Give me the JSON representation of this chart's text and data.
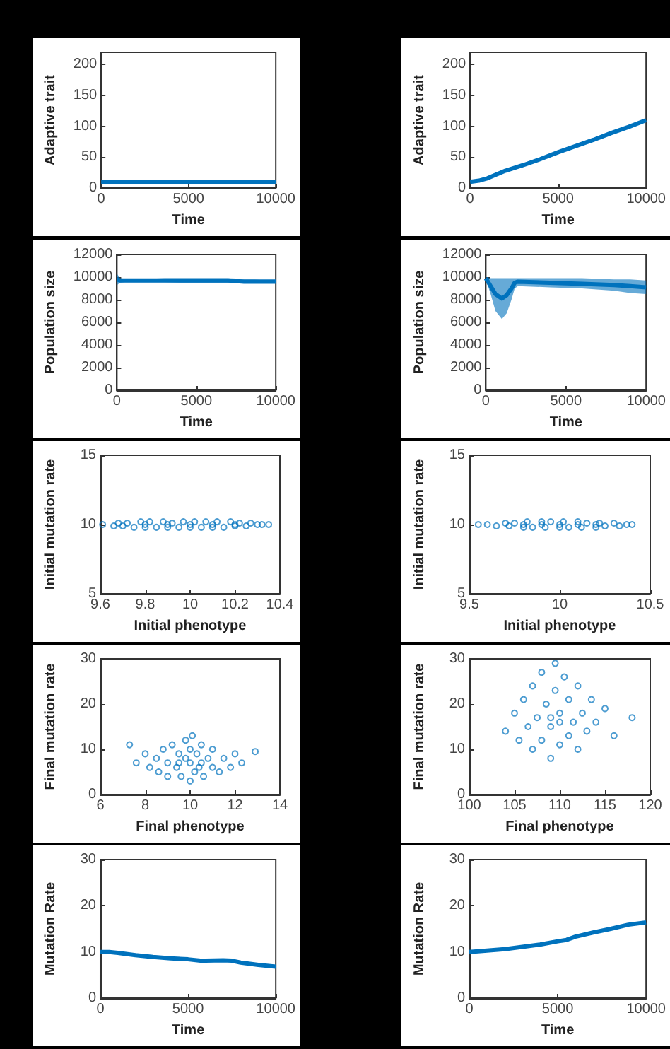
{
  "chart_data": [
    {
      "type": "line",
      "xlabel": "Time",
      "ylabel": "Adaptive trait",
      "xlim": [
        0,
        10000
      ],
      "xticks": [
        0,
        5000,
        10000
      ],
      "ylim": [
        0,
        220
      ],
      "yticks": [
        0,
        50,
        100,
        150,
        200
      ],
      "marker": "none",
      "series": [
        {
          "color": "#0072bd",
          "x": [
            0,
            10000
          ],
          "values": [
            10,
            10
          ]
        }
      ]
    },
    {
      "type": "line",
      "xlabel": "Time",
      "ylabel": "Adaptive trait",
      "xlim": [
        0,
        10000
      ],
      "xticks": [
        0,
        5000,
        10000
      ],
      "ylim": [
        0,
        220
      ],
      "yticks": [
        0,
        50,
        100,
        150,
        200
      ],
      "marker": "none",
      "series": [
        {
          "color": "#0072bd",
          "x": [
            0,
            500,
            1000,
            1500,
            2000,
            3000,
            4000,
            5000,
            6000,
            7000,
            8000,
            9000,
            10000
          ],
          "values": [
            10,
            12,
            16,
            22,
            28,
            37,
            47,
            58,
            68,
            78,
            89,
            99,
            110
          ]
        }
      ]
    },
    {
      "type": "line",
      "xlabel": "Time",
      "ylabel": "Population size",
      "xlim": [
        0,
        10000
      ],
      "xticks": [
        0,
        5000,
        10000
      ],
      "ylim": [
        0,
        12000
      ],
      "yticks": [
        0,
        2000,
        4000,
        6000,
        8000,
        10000,
        12000
      ],
      "marker": "none",
      "series": [
        {
          "color": "#0072bd",
          "x": [
            0,
            200,
            500,
            1000,
            2000,
            3000,
            4000,
            5000,
            6000,
            7000,
            8000,
            9000,
            10000
          ],
          "values": [
            9800,
            9700,
            9700,
            9700,
            9700,
            9700,
            9700,
            9700,
            9700,
            9700,
            9600,
            9600,
            9600
          ],
          "lower": [
            9300,
            9500,
            9550,
            9550,
            9550,
            9550,
            9500,
            9500,
            9500,
            9500,
            9500,
            9500,
            9500
          ],
          "upper": [
            10300,
            9900,
            9850,
            9850,
            9850,
            9900,
            9900,
            9900,
            9900,
            9900,
            9850,
            9800,
            9800
          ]
        }
      ]
    },
    {
      "type": "line",
      "xlabel": "Time",
      "ylabel": "Population size",
      "xlim": [
        0,
        10000
      ],
      "xticks": [
        0,
        5000,
        10000
      ],
      "ylim": [
        0,
        12000
      ],
      "yticks": [
        0,
        2000,
        4000,
        6000,
        8000,
        10000,
        12000
      ],
      "marker": "none",
      "series": [
        {
          "color": "#0072bd",
          "x": [
            0,
            300,
            600,
            1000,
            1300,
            1600,
            1800,
            2000,
            4000,
            6000,
            8000,
            9000,
            10000
          ],
          "values": [
            9900,
            9200,
            8500,
            8100,
            8400,
            9000,
            9500,
            9600,
            9500,
            9400,
            9300,
            9200,
            9100
          ],
          "lower": [
            9800,
            8500,
            7000,
            6300,
            6800,
            8000,
            9000,
            9200,
            9100,
            9000,
            8800,
            8600,
            8500
          ],
          "upper": [
            10000,
            9900,
            9900,
            9900,
            9900,
            9900,
            9900,
            9900,
            9900,
            9900,
            9800,
            9800,
            9700
          ]
        }
      ]
    },
    {
      "type": "scatter",
      "xlabel": "Initial phenotype",
      "ylabel": "Initial mutation rate",
      "xlim": [
        9.6,
        10.4
      ],
      "xticks": [
        9.6,
        9.8,
        10,
        10.2,
        10.4
      ],
      "ylim": [
        5,
        15
      ],
      "yticks": [
        5,
        10,
        15
      ],
      "marker": "circle",
      "series": [
        {
          "color": "#0072bd",
          "x": [
            9.61,
            9.66,
            9.68,
            9.7,
            9.72,
            9.75,
            9.78,
            9.8,
            9.82,
            9.85,
            9.88,
            9.9,
            9.92,
            9.95,
            9.97,
            10,
            10,
            10.02,
            10.05,
            10.07,
            10.1,
            10.12,
            10.15,
            10.18,
            10.2,
            10.22,
            10.25,
            10.27,
            10.3,
            10.32,
            10.35,
            9.9,
            10.1,
            9.8,
            10.2
          ],
          "values": [
            10,
            9.9,
            10.1,
            9.9,
            10.1,
            9.8,
            10.2,
            9.8,
            10.2,
            9.8,
            10.2,
            9.8,
            10.1,
            9.8,
            10.2,
            10,
            9.8,
            10.2,
            9.8,
            10.2,
            9.8,
            10.2,
            9.8,
            10.2,
            9.9,
            10.1,
            9.9,
            10.1,
            10,
            10,
            10,
            10,
            10,
            10,
            10
          ]
        }
      ]
    },
    {
      "type": "scatter",
      "xlabel": "Initial phenotype",
      "ylabel": "Initial mutation rate",
      "xlim": [
        9.5,
        10.5
      ],
      "xticks": [
        9.5,
        10,
        10.5
      ],
      "ylim": [
        5,
        15
      ],
      "yticks": [
        5,
        10,
        15
      ],
      "marker": "circle",
      "series": [
        {
          "color": "#0072bd",
          "x": [
            9.55,
            9.6,
            9.65,
            9.7,
            9.72,
            9.75,
            9.8,
            9.82,
            9.85,
            9.9,
            9.92,
            9.95,
            10,
            10,
            10.02,
            10.05,
            10.1,
            10.12,
            10.15,
            10.2,
            10.22,
            10.25,
            10.3,
            10.33,
            10.37,
            10.4,
            9.9,
            10.1,
            9.8,
            10.2
          ],
          "values": [
            10,
            10,
            9.9,
            10.1,
            9.9,
            10.1,
            9.8,
            10.2,
            9.8,
            10.2,
            9.8,
            10.2,
            9.8,
            10,
            10.2,
            9.8,
            10.2,
            9.8,
            10.1,
            9.8,
            10.1,
            9.9,
            10.1,
            9.9,
            10,
            10,
            10,
            10,
            10,
            10
          ]
        }
      ]
    },
    {
      "type": "scatter",
      "xlabel": "Final phenotype",
      "ylabel": "Final mutation rate",
      "xlim": [
        6,
        14
      ],
      "xticks": [
        6,
        8,
        10,
        12,
        14
      ],
      "ylim": [
        0,
        30
      ],
      "yticks": [
        0,
        10,
        20,
        30
      ],
      "marker": "circle",
      "series": [
        {
          "color": "#0072bd",
          "x": [
            7.3,
            7.6,
            8,
            8.2,
            8.5,
            8.6,
            8.8,
            9,
            9,
            9.2,
            9.4,
            9.5,
            9.6,
            9.8,
            9.8,
            10,
            10,
            10,
            10.1,
            10.2,
            10.3,
            10.4,
            10.5,
            10.6,
            10.8,
            11,
            11,
            11.3,
            11.5,
            11.8,
            12,
            12.3,
            12.9,
            9.5,
            10.5
          ],
          "values": [
            11,
            7,
            9,
            6,
            8,
            5,
            10,
            4,
            7,
            11,
            6,
            9,
            4,
            8,
            12,
            3,
            7,
            10,
            13,
            5,
            9,
            6,
            11,
            4,
            8,
            6,
            10,
            5,
            8,
            6,
            9,
            7,
            9.5,
            7,
            7
          ]
        }
      ]
    },
    {
      "type": "scatter",
      "xlabel": "Final phenotype",
      "ylabel": "Final mutation rate",
      "xlim": [
        100,
        120
      ],
      "xticks": [
        100,
        105,
        110,
        115,
        120
      ],
      "ylim": [
        0,
        30
      ],
      "yticks": [
        0,
        10,
        20,
        30
      ],
      "marker": "circle",
      "series": [
        {
          "color": "#0072bd",
          "x": [
            104,
            105,
            105.5,
            106,
            106.5,
            107,
            107,
            107.5,
            108,
            108,
            108.5,
            109,
            109,
            109.5,
            109.5,
            110,
            110,
            110.5,
            111,
            111,
            111.5,
            112,
            112,
            112.5,
            113,
            113.5,
            114,
            115,
            116,
            118,
            109,
            110
          ],
          "values": [
            14,
            18,
            12,
            21,
            15,
            10,
            24,
            17,
            12,
            27,
            20,
            8,
            15,
            23,
            29,
            11,
            18,
            26,
            13,
            21,
            16,
            10,
            24,
            18,
            14,
            21,
            16,
            19,
            13,
            17,
            17,
            16
          ]
        }
      ]
    },
    {
      "type": "line",
      "xlabel": "Time",
      "ylabel": "Mutation Rate",
      "xlim": [
        0,
        10000
      ],
      "xticks": [
        0,
        5000,
        10000
      ],
      "ylim": [
        0,
        30
      ],
      "yticks": [
        0,
        10,
        20,
        30
      ],
      "marker": "none",
      "series": [
        {
          "color": "#0072bd",
          "x": [
            0,
            500,
            1000,
            2000,
            3000,
            4000,
            5000,
            5700,
            6000,
            7000,
            7500,
            8000,
            9000,
            10000
          ],
          "values": [
            10,
            10,
            9.8,
            9.3,
            8.9,
            8.6,
            8.4,
            8.1,
            8.1,
            8.2,
            8.1,
            7.7,
            7.2,
            6.8
          ]
        }
      ]
    },
    {
      "type": "line",
      "xlabel": "Time",
      "ylabel": "Mutation Rate",
      "xlim": [
        0,
        10000
      ],
      "xticks": [
        0,
        5000,
        10000
      ],
      "ylim": [
        0,
        30
      ],
      "yticks": [
        0,
        10,
        20,
        30
      ],
      "marker": "none",
      "series": [
        {
          "color": "#0072bd",
          "x": [
            0,
            1000,
            2000,
            3000,
            4000,
            5000,
            5500,
            6000,
            7000,
            8000,
            9000,
            10000
          ],
          "values": [
            10,
            10.3,
            10.6,
            11.1,
            11.6,
            12.3,
            12.6,
            13.3,
            14.2,
            15,
            15.9,
            16.4
          ]
        }
      ]
    }
  ]
}
